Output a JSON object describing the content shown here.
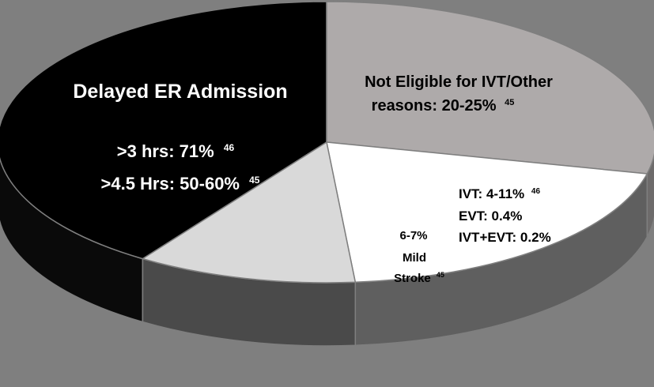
{
  "chart_data": {
    "type": "pie",
    "style": "3d",
    "background_color": "#7f7f7f",
    "slices": [
      {
        "label": "Delayed ER Admission",
        "lines": [
          ">3 hrs:  71%",
          ">4.5 Hrs:  50-60%"
        ],
        "refs": [
          "46",
          "45"
        ],
        "color": "#000000",
        "side_color": "#0a0a0a",
        "start_deg": 124,
        "end_deg": 270
      },
      {
        "label": "Not Eligible for IVT/Other",
        "lines": [
          "reasons: 20-25%"
        ],
        "refs": [
          "45"
        ],
        "color": "#aeaaaa",
        "side_color": "#6d6b6b",
        "start_deg": 270,
        "end_deg": 373
      },
      {
        "label": "",
        "lines": [
          "IVT: 4-11%",
          "EVT: 0.4%",
          "IVT+EVT: 0.2%"
        ],
        "refs": [
          "46",
          "",
          ""
        ],
        "color": "#ffffff",
        "side_color": "#5f5f5f",
        "start_deg": 13,
        "end_deg": 85
      },
      {
        "label": "6-7%",
        "lines": [
          "Mild",
          "Stroke"
        ],
        "refs": [
          "",
          "45"
        ],
        "color": "#d9d9d9",
        "side_color": "#4a4a4a",
        "start_deg": 85,
        "end_deg": 124
      }
    ]
  }
}
